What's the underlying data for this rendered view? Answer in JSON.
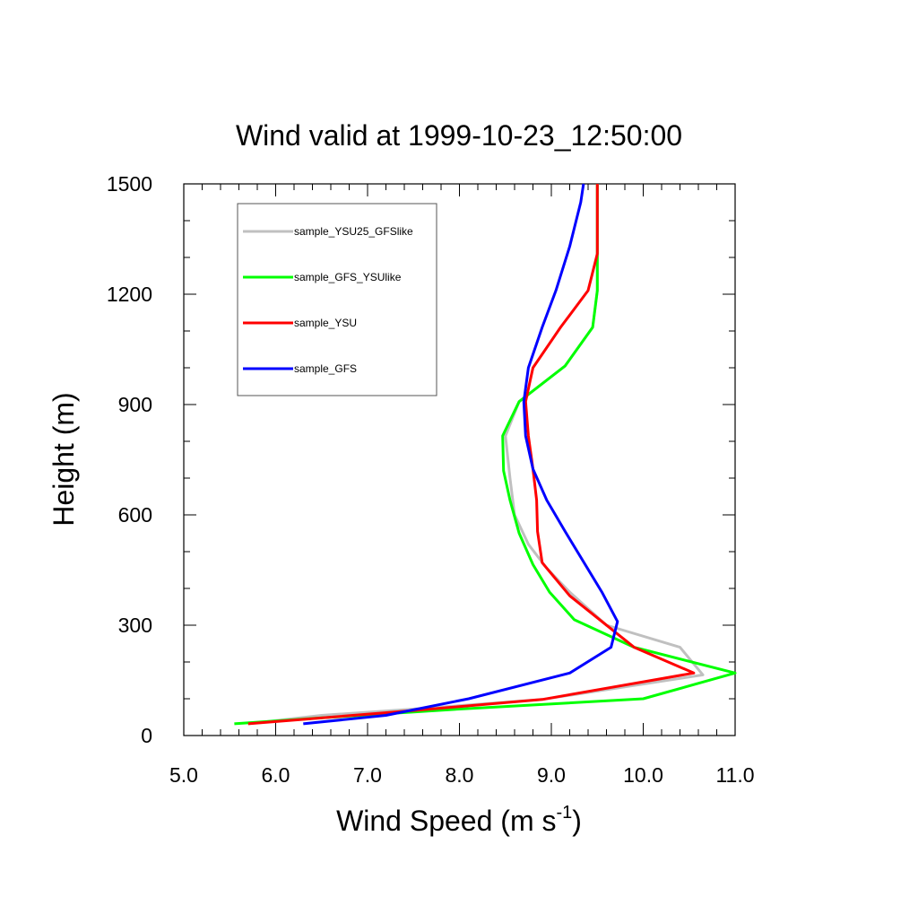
{
  "chart_data": {
    "type": "line",
    "title": "Wind valid at 1999-10-23_12:50:00",
    "xlabel": "Wind Speed (m s",
    "xlabel_superscript": "-1",
    "xlabel_suffix": ")",
    "ylabel": "Height (m)",
    "xlim": [
      5.0,
      11.0
    ],
    "ylim": [
      0,
      1500
    ],
    "x_ticks": [
      5.0,
      6.0,
      7.0,
      8.0,
      9.0,
      10.0,
      11.0
    ],
    "x_tick_labels": [
      "5.0",
      "6.0",
      "7.0",
      "8.0",
      "9.0",
      "10.0",
      "11.0"
    ],
    "y_ticks": [
      0,
      300,
      600,
      900,
      1200,
      1500
    ],
    "y_tick_labels": [
      "0",
      "300",
      "600",
      "900",
      "1200",
      "1500"
    ],
    "grid": false,
    "legend_position": "top-left",
    "series": [
      {
        "name": "sample_YSU25_GFSlike",
        "color": "#c0c0c0",
        "points": [
          [
            5.7,
            32
          ],
          [
            6.5,
            55
          ],
          [
            7.5,
            72
          ],
          [
            8.9,
            98
          ],
          [
            10.65,
            165
          ],
          [
            10.4,
            240
          ],
          [
            9.6,
            300
          ],
          [
            9.2,
            390
          ],
          [
            8.95,
            455
          ],
          [
            8.75,
            520
          ],
          [
            8.6,
            600
          ],
          [
            8.55,
            700
          ],
          [
            8.5,
            815
          ],
          [
            8.65,
            908
          ],
          [
            9.15,
            1005
          ],
          [
            9.45,
            1110
          ],
          [
            9.5,
            1210
          ],
          [
            9.5,
            1310
          ],
          [
            9.5,
            1410
          ],
          [
            9.5,
            1500
          ]
        ]
      },
      {
        "name": "sample_GFS_YSUlike",
        "color": "#00ff00",
        "points": [
          [
            5.55,
            32
          ],
          [
            6.5,
            48
          ],
          [
            8.0,
            72
          ],
          [
            10.0,
            100
          ],
          [
            11.0,
            170
          ],
          [
            9.9,
            240
          ],
          [
            9.25,
            315
          ],
          [
            8.98,
            390
          ],
          [
            8.8,
            465
          ],
          [
            8.65,
            550
          ],
          [
            8.55,
            640
          ],
          [
            8.48,
            720
          ],
          [
            8.47,
            815
          ],
          [
            8.65,
            908
          ],
          [
            9.15,
            1005
          ],
          [
            9.45,
            1110
          ],
          [
            9.5,
            1210
          ],
          [
            9.5,
            1310
          ],
          [
            9.5,
            1410
          ],
          [
            9.5,
            1500
          ]
        ]
      },
      {
        "name": "sample_YSU",
        "color": "#ff0000",
        "points": [
          [
            5.7,
            32
          ],
          [
            7.5,
            68
          ],
          [
            8.9,
            98
          ],
          [
            10.55,
            170
          ],
          [
            9.9,
            240
          ],
          [
            9.2,
            380
          ],
          [
            8.9,
            470
          ],
          [
            8.85,
            555
          ],
          [
            8.84,
            640
          ],
          [
            8.8,
            725
          ],
          [
            8.75,
            815
          ],
          [
            8.72,
            908
          ],
          [
            8.8,
            1000
          ],
          [
            9.1,
            1110
          ],
          [
            9.4,
            1210
          ],
          [
            9.5,
            1310
          ],
          [
            9.5,
            1410
          ],
          [
            9.5,
            1500
          ]
        ]
      },
      {
        "name": "sample_GFS",
        "color": "#0000ff",
        "points": [
          [
            6.3,
            32
          ],
          [
            7.2,
            55
          ],
          [
            8.1,
            100
          ],
          [
            9.2,
            170
          ],
          [
            9.65,
            240
          ],
          [
            9.72,
            310
          ],
          [
            9.55,
            390
          ],
          [
            9.15,
            555
          ],
          [
            8.95,
            640
          ],
          [
            8.8,
            725
          ],
          [
            8.72,
            815
          ],
          [
            8.7,
            908
          ],
          [
            8.75,
            1000
          ],
          [
            8.9,
            1110
          ],
          [
            9.05,
            1210
          ],
          [
            9.2,
            1330
          ],
          [
            9.32,
            1450
          ],
          [
            9.35,
            1500
          ]
        ]
      }
    ]
  }
}
